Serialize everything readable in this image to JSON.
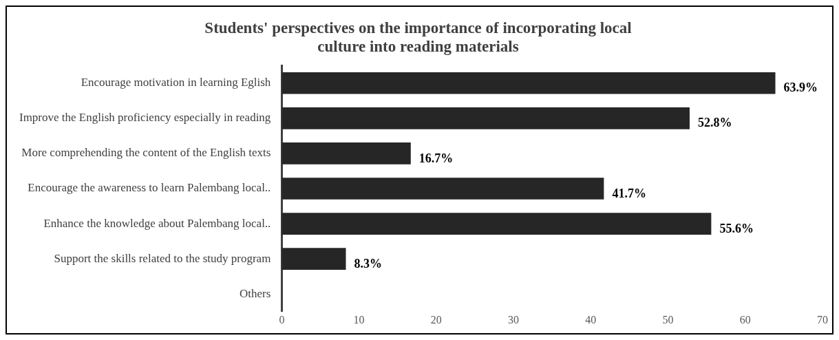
{
  "chart_data": {
    "type": "bar",
    "orientation": "horizontal",
    "title": "Students' perspectives on the importance of incorporating local culture into reading materials",
    "categories": [
      "Encourage motivation in learning Eglish",
      "Improve the English proficiency especially in reading",
      "More comprehending the content of the English texts",
      "Encourage the awareness to learn Palembang local..",
      "Enhance the knowledge about Palembang local..",
      "Support the skills related to the study program",
      "Others"
    ],
    "values": [
      63.9,
      52.8,
      16.7,
      41.7,
      55.6,
      8.3,
      0
    ],
    "value_labels": [
      "63.9%",
      "52.8%",
      "16.7%",
      "41.7%",
      "55.6%",
      "8.3%",
      null
    ],
    "color": "#262626",
    "xlim": [
      0,
      70
    ],
    "xticks": [
      0,
      10,
      20,
      30,
      40,
      50,
      60,
      70
    ],
    "grid": false,
    "legend": false
  }
}
